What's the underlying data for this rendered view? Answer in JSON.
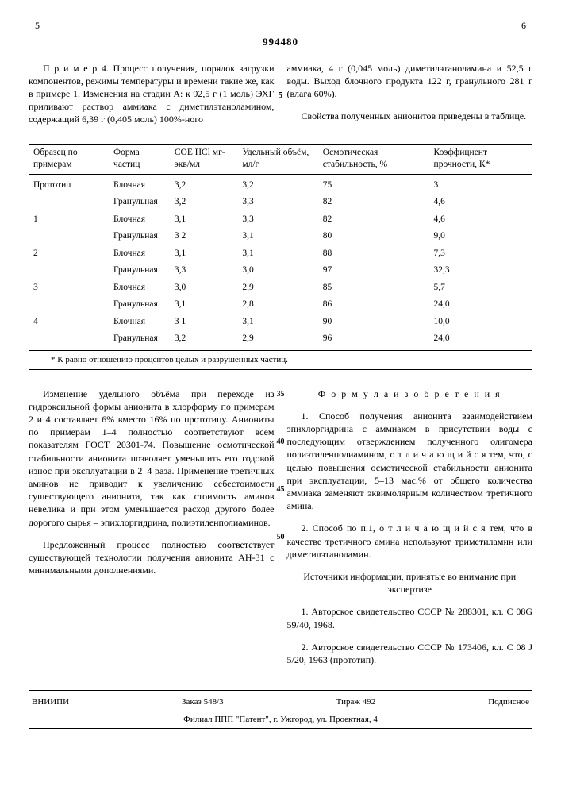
{
  "docNumber": "994480",
  "pageLeft": "5",
  "pageRight": "6",
  "topLeftPara": "П р и м е р 4. Процесс получения, порядок загрузки компонентов, режимы температуры и времени такие же, как в примере 1. Изменения на стадии А: к 92,5 г (1 моль) ЭХГ приливают раствор аммиака с диметилэтаноламином, содержащий 6,39 г (0,405 моль) 100%-ного",
  "topRightPara1": "аммиака, 4 г (0,045 моль) диметилэтаноламина и 52,5 г воды. Выход блочного продукта 122 г, гранульного 281 г (влага 60%).",
  "topRightPara2": "Свойства полученных анионитов приведены в таблице.",
  "table": {
    "headers": [
      "Образец по примерам",
      "Форма частиц",
      "СОЕ HCl мг-экв/мл",
      "Удельный объём, мл/г",
      "Осмотическая стабильность, %",
      "Коэффициент прочности, К*"
    ],
    "rows": [
      [
        "Прототип",
        "Блочная",
        "3,2",
        "3,2",
        "75",
        "3"
      ],
      [
        "",
        "Гранульная",
        "3,2",
        "3,3",
        "82",
        "4,6"
      ],
      [
        "1",
        "Блочная",
        "3,1",
        "3,3",
        "82",
        "4,6"
      ],
      [
        "",
        "Гранульная",
        "3 2",
        "3,1",
        "80",
        "9,0"
      ],
      [
        "2",
        "Блочная",
        "3,1",
        "3,1",
        "88",
        "7,3"
      ],
      [
        "",
        "Гранульная",
        "3,3",
        "3,0",
        "97",
        "32,3"
      ],
      [
        "3",
        "Блочная",
        "3,0",
        "2,9",
        "85",
        "5,7"
      ],
      [
        "",
        "Гранульная",
        "3,1",
        "2,8",
        "86",
        "24,0"
      ],
      [
        "4",
        "Блочная",
        "3 1",
        "3,1",
        "90",
        "10,0"
      ],
      [
        "",
        "Гранульная",
        "3,2",
        "2,9",
        "96",
        "24,0"
      ]
    ]
  },
  "footnote": "* К равно отношению процентов целых и разрушенных частиц.",
  "bottomLeft1": "Изменение удельного объёма при переходе из гидроксильной формы анионита в хлорформу по примерам 2 и 4 составляет 6% вместо 16% по прототипу. Аниониты по примерам 1–4 полностью соответствуют всем показателям ГОСТ 20301-74. Повышение осмотической стабильности анионита позволяет уменьшить его годовой износ при эксплуатации в 2–4 раза. Применение третичных аминов не приводит к увеличению себестоимости существующего анионита, так как стоимость аминов невелика и при этом уменьшается расход другого более дорогого сырья – эпихлоргидрина, полиэтиленполиаминов.",
  "bottomLeft2": "Предложенный процесс полностью соответствует существующей технологии получения анионита АН-31 с минимальными дополнениями.",
  "formulaTitle": "Ф о р м у л а  и з о б р е т е н и я",
  "claim1": "1. Способ получения анионита взаимодействием эпихлоргидрина с аммиаком в присутствии воды с последующим отверждением полученного олигомера полиэтиленполиамином, о т л и ч а ю щ и й с я тем, что, с целью повышения осмотической стабильности анионита при эксплуатации, 5–13 мас.% от общего количества аммиака заменяют эквимолярным количеством третичного амина.",
  "claim2": "2. Способ по п.1, о т л и ч а ю щ и й с я тем, что в качестве третичного амина используют триметиламин или диметилэтаноламин.",
  "sourcesTitle": "Источники информации, принятые во внимание при экспертизе",
  "source1": "1. Авторское свидетельство СССР № 288301, кл. C 08G 59/40, 1968.",
  "source2": "2. Авторское свидетельство СССР № 173406, кл. C 08 J 5/20, 1963 (прототип).",
  "lineNums": {
    "n5": "5",
    "n35": "35",
    "n40": "40",
    "n45": "45",
    "n50": "50"
  },
  "colophon": {
    "org": "ВНИИПИ",
    "order": "Заказ 548/3",
    "copies": "Тираж 492",
    "sub": "Подписное",
    "addr": "Филиал ППП \"Патент\", г. Ужгород, ул. Проектная, 4"
  }
}
